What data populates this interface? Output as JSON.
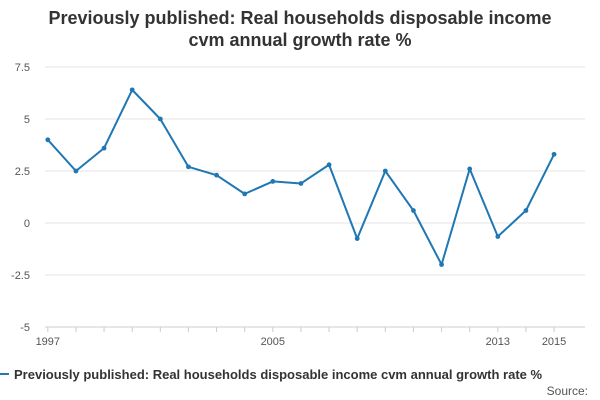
{
  "chart_data": {
    "type": "line",
    "title_line1": "Previously published: Real households disposable income",
    "title_line2": "cvm annual growth rate %",
    "xlabel": "",
    "ylabel": "",
    "x": [
      1997,
      1998,
      1999,
      2000,
      2001,
      2002,
      2003,
      2004,
      2005,
      2006,
      2007,
      2008,
      2009,
      2010,
      2011,
      2012,
      2013,
      2014,
      2015
    ],
    "x_tick_labels": [
      {
        "value": 1997,
        "label": "1997"
      },
      {
        "value": 2005,
        "label": "2005"
      },
      {
        "value": 2013,
        "label": "2013"
      },
      {
        "value": 2015,
        "label": "2015"
      }
    ],
    "xlim": [
      1996.9,
      2016.1
    ],
    "ylim": [
      -5,
      7.5
    ],
    "y_ticks": [
      -5,
      -2.5,
      0,
      2.5,
      5,
      7.5
    ],
    "y_tick_labels": [
      "-5",
      "-2.5",
      "0",
      "2.5",
      "5",
      "7.5"
    ],
    "grid": "horizontal",
    "legend_position": "bottom",
    "series": [
      {
        "name": "Previously published: Real households disposable income cvm annual growth rate %",
        "color": "#1f77b4",
        "values": [
          4.0,
          2.5,
          3.6,
          6.4,
          5.0,
          2.7,
          2.3,
          1.4,
          2.0,
          1.9,
          2.8,
          -0.75,
          2.5,
          0.6,
          -2.0,
          2.6,
          -0.65,
          0.6,
          3.3
        ]
      }
    ],
    "source_label": "Source:"
  }
}
